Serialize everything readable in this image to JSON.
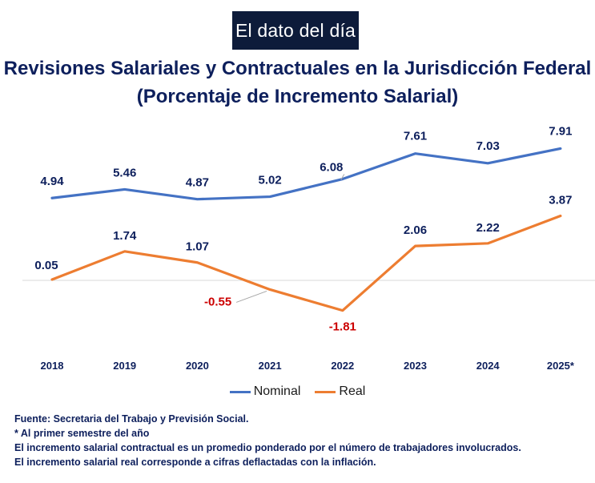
{
  "header": {
    "badge": "El dato del día",
    "title_line1": "Revisiones Salariales y Contractuales en la Jurisdicción Federal",
    "title_line2": "(Porcentaje de Incremento Salarial)"
  },
  "colors": {
    "nominal": "#4472c4",
    "real": "#ed7d31",
    "negative_label": "#cc0000",
    "label": "#0d1f5c",
    "zero_line": "#d9d9d9"
  },
  "chart_data": {
    "type": "line",
    "title": "Revisiones Salariales y Contractuales en la Jurisdicción Federal",
    "subtitle": "(Porcentaje de Incremento Salarial)",
    "categories": [
      "2018",
      "2019",
      "2020",
      "2021",
      "2022",
      "2023",
      "2024",
      "2025*"
    ],
    "series": [
      {
        "name": "Nominal",
        "values": [
          4.94,
          5.46,
          4.87,
          5.02,
          6.08,
          7.61,
          7.03,
          7.91
        ],
        "labels": [
          "4.94",
          "5.46",
          "4.87",
          "5.02",
          "6.08",
          "7.61",
          "7.03",
          "7.91"
        ]
      },
      {
        "name": "Real",
        "values": [
          0.05,
          1.74,
          1.07,
          -0.55,
          -1.81,
          2.06,
          2.22,
          3.87
        ],
        "labels": [
          "0.05",
          "1.74",
          "1.07",
          "-0.55",
          "-1.81",
          "2.06",
          "2.22",
          "3.87"
        ]
      }
    ],
    "ylim": [
      -4,
      9
    ],
    "grid": false,
    "legend_position": "bottom"
  },
  "notes": [
    "Fuente: Secretaria del Trabajo y Previsión Social.",
    "* Al primer semestre del año",
    "El incremento salarial contractual es un promedio ponderado por el número de trabajadores involucrados.",
    "El incremento salarial real corresponde a cifras deflactadas con la inflación."
  ]
}
